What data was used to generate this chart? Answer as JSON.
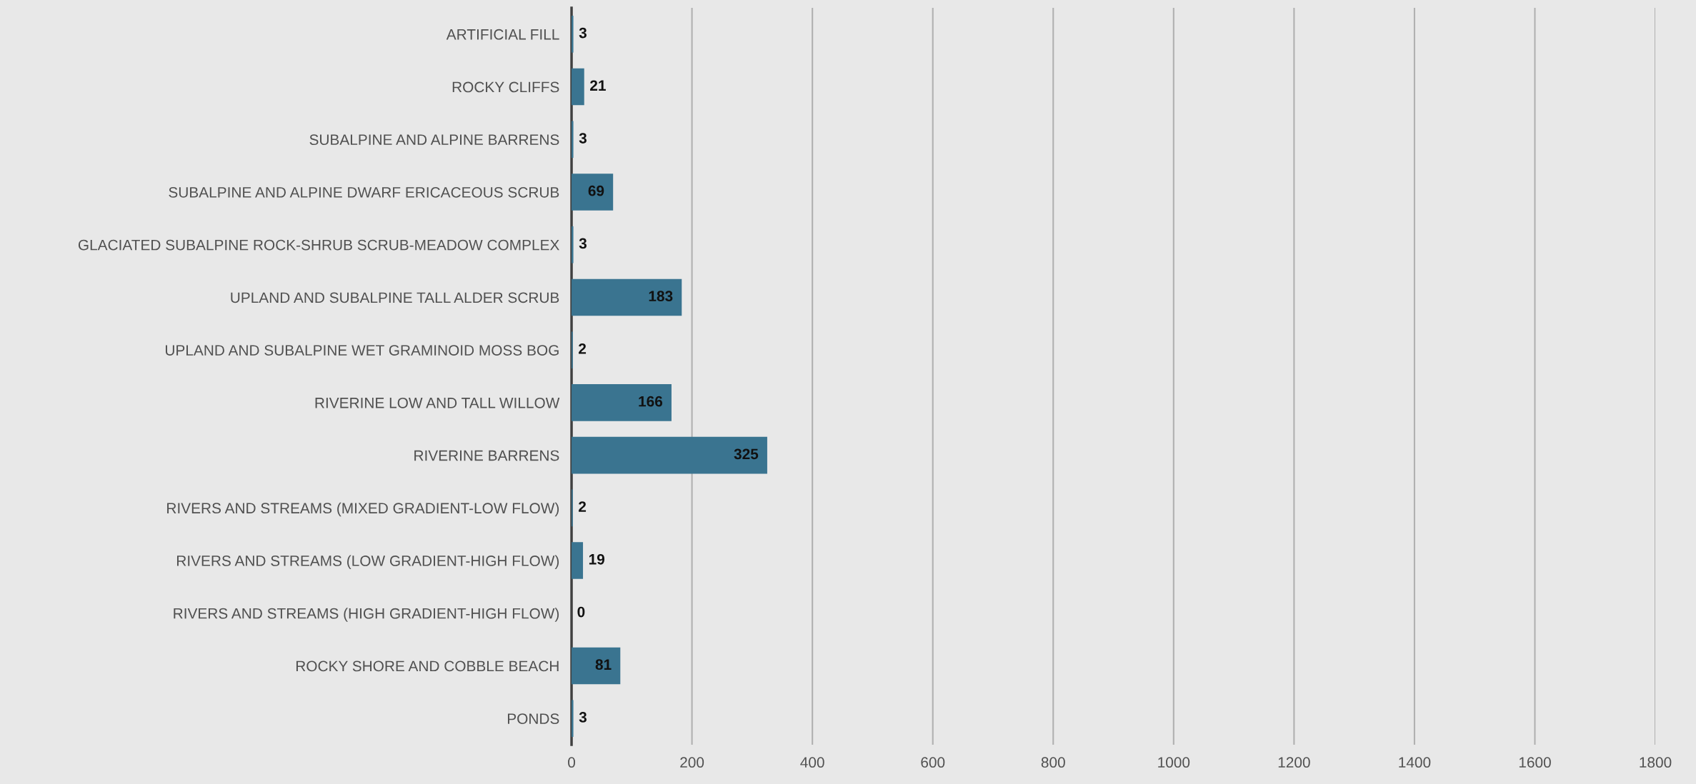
{
  "chart_data": {
    "type": "bar",
    "orientation": "horizontal",
    "categories": [
      "ARTIFICIAL FILL",
      "ROCKY CLIFFS",
      "SUBALPINE AND ALPINE BARRENS",
      "SUBALPINE AND ALPINE DWARF ERICACEOUS SCRUB",
      "GLACIATED SUBALPINE ROCK-SHRUB SCRUB-MEADOW COMPLEX",
      "UPLAND AND SUBALPINE TALL ALDER SCRUB",
      "UPLAND AND SUBALPINE WET GRAMINOID MOSS BOG",
      "RIVERINE LOW AND TALL WILLOW",
      "RIVERINE BARRENS",
      "RIVERS AND STREAMS (MIXED GRADIENT-LOW FLOW)",
      "RIVERS AND STREAMS (LOW GRADIENT-HIGH FLOW)",
      "RIVERS AND STREAMS (HIGH GRADIENT-HIGH FLOW)",
      "ROCKY SHORE AND COBBLE BEACH",
      "PONDS"
    ],
    "values": [
      3,
      21,
      3,
      69,
      3,
      183,
      2,
      166,
      325,
      2,
      19,
      0,
      81,
      3
    ],
    "color": "#3a7490",
    "xlim": [
      0,
      1800
    ],
    "xticks": [
      0,
      200,
      400,
      600,
      800,
      1000,
      1200,
      1400,
      1600,
      1800
    ],
    "grid": "x",
    "data_labels": true
  }
}
